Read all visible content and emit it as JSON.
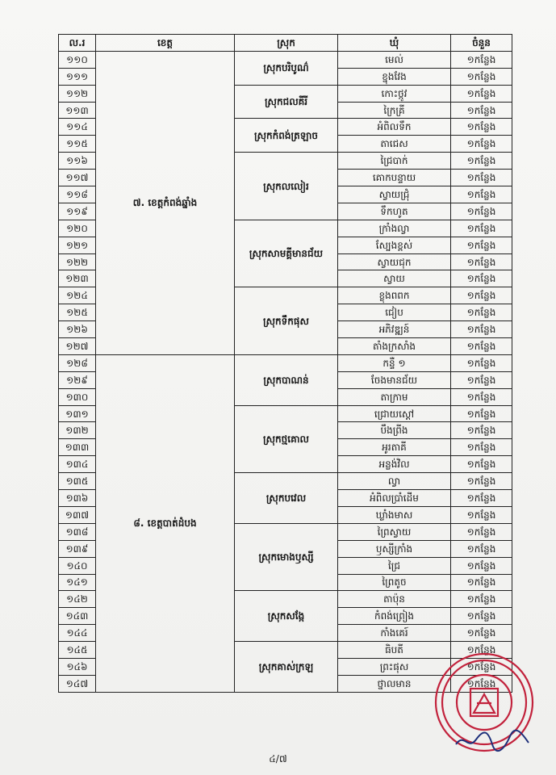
{
  "headers": {
    "no": "ល.រ",
    "province": "ខេត្ត",
    "district": "ស្រុក",
    "commune": "ឃុំ",
    "count": "ចំនួន"
  },
  "count_value": "១កន្លែង",
  "provinces": [
    {
      "label": "៧. ខេត្តកំពង់ឆ្នាំង"
    },
    {
      "label": "៨. ខេត្តបាត់ដំបង"
    }
  ],
  "districts": [
    {
      "label": "ស្រុកបរិបូណ៌"
    },
    {
      "label": "ស្រុកជលគីរី"
    },
    {
      "label": "ស្រុកកំពង់ត្រឡាច"
    },
    {
      "label": "ស្រុកលលៀរ"
    },
    {
      "label": "ស្រុកសាមគ្គីមានជ័យ"
    },
    {
      "label": "ស្រុកទឹកផុស"
    },
    {
      "label": "ស្រុកបាណន់"
    },
    {
      "label": "ស្រុកថ្មគោល"
    },
    {
      "label": "ស្រុកបវេល"
    },
    {
      "label": "ស្រុកមោងឫស្សី"
    },
    {
      "label": "ស្រុកសង្កែ"
    },
    {
      "label": "ស្រុកគាស់ក្រឡ"
    }
  ],
  "rows": [
    {
      "no": "១១០",
      "commune": "មេល់"
    },
    {
      "no": "១១១",
      "commune": "ខ្នុងវែង"
    },
    {
      "no": "១១២",
      "commune": "កោះថ្កូវ"
    },
    {
      "no": "១១៣",
      "commune": "ក្រៃគ្រី"
    },
    {
      "no": "១១៤",
      "commune": "អំពិលទឹក"
    },
    {
      "no": "១១៥",
      "commune": "តាជេស"
    },
    {
      "no": "១១៦",
      "commune": "ជ្រៃបាក់"
    },
    {
      "no": "១១៧",
      "commune": "គោកបន្ទាយ"
    },
    {
      "no": "១១៨",
      "commune": "ស្វាយជ្រុំ"
    },
    {
      "no": "១១៩",
      "commune": "ទឹកហូត"
    },
    {
      "no": "១២០",
      "commune": "ក្រាំងល្វា"
    },
    {
      "no": "១២១",
      "commune": "ស្បែងខ្ពស់"
    },
    {
      "no": "១២២",
      "commune": "ស្វាយជុក"
    },
    {
      "no": "១២៣",
      "commune": "ស្វាយ"
    },
    {
      "no": "១២៤",
      "commune": "ខ្លុងពពក"
    },
    {
      "no": "១២៥",
      "commune": "ជៀប"
    },
    {
      "no": "១២៦",
      "commune": "អភិវឌ្ឍន៍"
    },
    {
      "no": "១២៧",
      "commune": "តាំងក្រសាំង"
    },
    {
      "no": "១២៨",
      "commune": "កន្ទឺ ១"
    },
    {
      "no": "១២៩",
      "commune": "ចែងមានជ័យ"
    },
    {
      "no": "១៣០",
      "commune": "តាក្រាម"
    },
    {
      "no": "១៣១",
      "commune": "ជ្រោយស្ដៅ"
    },
    {
      "no": "១៣២",
      "commune": "បឹងព្រីង"
    },
    {
      "no": "១៣៣",
      "commune": "អូរតាគី"
    },
    {
      "no": "១៣៤",
      "commune": "អន្លង់វិល"
    },
    {
      "no": "១៣៥",
      "commune": "ល្វា"
    },
    {
      "no": "១៣៦",
      "commune": "អំពិលប្រាំដើម"
    },
    {
      "no": "១៣៧",
      "commune": "ឃ្លាំងមាស"
    },
    {
      "no": "១៣៨",
      "commune": "ព្រៃស្វាយ"
    },
    {
      "no": "១៣៩",
      "commune": "ឫស្សីក្រាំង"
    },
    {
      "no": "១៤០",
      "commune": "ជ្រៃ"
    },
    {
      "no": "១៤១",
      "commune": "ព្រៃតូច"
    },
    {
      "no": "១៤២",
      "commune": "តាប៉ុន"
    },
    {
      "no": "១៤៣",
      "commune": "កំពង់ព្រៀង"
    },
    {
      "no": "១៤៤",
      "commune": "កាំងគេរ៍"
    },
    {
      "no": "១៤៥",
      "commune": "ធិបតី"
    },
    {
      "no": "១៤៦",
      "commune": "ព្រះផុស"
    },
    {
      "no": "១៤៧",
      "commune": "ថ្នាលមាន"
    }
  ],
  "page_number": "៤/៧",
  "seal_color": "#c2223c"
}
